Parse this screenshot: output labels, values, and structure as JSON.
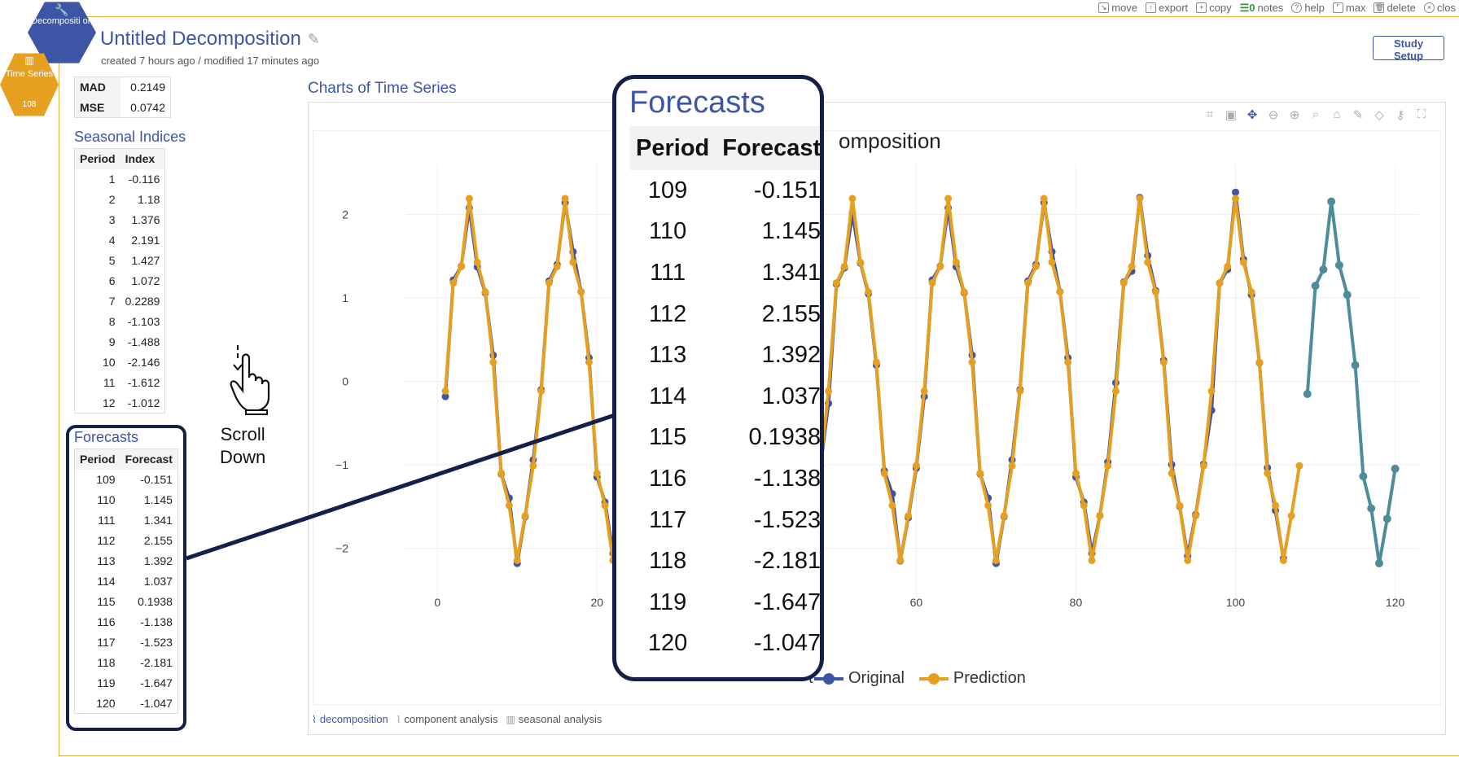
{
  "toolbar": {
    "items": [
      {
        "name": "move",
        "icon": "move-icon",
        "glyph": "↘",
        "label": "move"
      },
      {
        "name": "export",
        "icon": "export-icon",
        "glyph": "↑",
        "label": "export"
      },
      {
        "name": "copy",
        "icon": "copy-icon",
        "glyph": "+",
        "label": "copy"
      },
      {
        "name": "notes",
        "icon": "notes-icon",
        "glyph": "☰0",
        "label": "notes"
      },
      {
        "name": "help",
        "icon": "help-icon",
        "glyph": "?",
        "label": "help"
      },
      {
        "name": "max",
        "icon": "max-icon",
        "glyph": "⌜",
        "label": "max"
      },
      {
        "name": "delete",
        "icon": "trash-icon",
        "glyph": "🗑",
        "label": "delete"
      },
      {
        "name": "close",
        "icon": "close-icon",
        "glyph": "×",
        "label": "clos"
      }
    ]
  },
  "nav": {
    "decomposition_label": "Decompositi on",
    "time_series_label": "Time Series",
    "time_series_count": "108"
  },
  "header": {
    "title": "Untitled Decomposition",
    "subtitle": "created 7 hours ago / modified 17 minutes ago",
    "study_setup": "Study Setup"
  },
  "stats": [
    {
      "label": "MAD",
      "value": "0.2149"
    },
    {
      "label": "MSE",
      "value": "0.0742"
    }
  ],
  "seasonal": {
    "title": "Seasonal Indices",
    "headers": [
      "Period",
      "Index"
    ],
    "rows": [
      [
        "1",
        "-0.116"
      ],
      [
        "2",
        "1.18"
      ],
      [
        "3",
        "1.376"
      ],
      [
        "4",
        "2.191"
      ],
      [
        "5",
        "1.427"
      ],
      [
        "6",
        "1.072"
      ],
      [
        "7",
        "0.2289"
      ],
      [
        "8",
        "-1.103"
      ],
      [
        "9",
        "-1.488"
      ],
      [
        "10",
        "-2.146"
      ],
      [
        "11",
        "-1.612"
      ],
      [
        "12",
        "-1.012"
      ]
    ]
  },
  "forecasts": {
    "title": "Forecasts",
    "headers": [
      "Period",
      "Forecast"
    ],
    "rows": [
      [
        "109",
        "-0.151"
      ],
      [
        "110",
        "1.145"
      ],
      [
        "111",
        "1.341"
      ],
      [
        "112",
        "2.155"
      ],
      [
        "113",
        "1.392"
      ],
      [
        "114",
        "1.037"
      ],
      [
        "115",
        "0.1938"
      ],
      [
        "116",
        "-1.138"
      ],
      [
        "117",
        "-1.523"
      ],
      [
        "118",
        "-2.181"
      ],
      [
        "119",
        "-1.647"
      ],
      [
        "120",
        "-1.047"
      ]
    ]
  },
  "callout": {
    "scroll_text_1": "Scroll",
    "scroll_text_2": "Down"
  },
  "charts": {
    "section_title": "Charts of Time Series",
    "visible_title": "omposition",
    "tabs": [
      {
        "label": "decomposition",
        "active": true
      },
      {
        "label": "component analysis",
        "active": false
      },
      {
        "label": "seasonal analysis",
        "active": false
      }
    ],
    "legend": [
      {
        "name": "Original",
        "color": "#3e55a6"
      },
      {
        "name": "Prediction",
        "color": "#e6a020"
      }
    ],
    "legend_cut": "t"
  },
  "chart_data": {
    "type": "line",
    "xlim": [
      -4,
      123
    ],
    "ylim": [
      -2.6,
      2.6
    ],
    "x_ticks": [
      0,
      20,
      40,
      60,
      80,
      100,
      120
    ],
    "y_ticks": [
      -2,
      -1,
      0,
      1,
      2
    ],
    "colors": {
      "original": "#3e55a6",
      "prediction": "#e6a020",
      "forecast": "#4e8c99"
    },
    "seasonal": [
      -0.116,
      1.18,
      1.376,
      2.191,
      1.427,
      1.072,
      0.2289,
      -1.103,
      -1.488,
      -2.146,
      -1.612,
      -1.012
    ],
    "original_noise": [
      -0.33,
      0.05,
      -0.08,
      -0.25,
      0.18,
      -0.05,
      0.12,
      0.15,
      0.2,
      0.12,
      -0.05,
      0.1
    ],
    "series": [
      {
        "name": "Original",
        "x_start": 1,
        "x_end": 106,
        "color": "#3e55a6"
      },
      {
        "name": "Prediction",
        "x_start": 1,
        "x_end": 108,
        "color": "#e6a020"
      }
    ],
    "forecast_series": {
      "x": [
        109,
        110,
        111,
        112,
        113,
        114,
        115,
        116,
        117,
        118,
        119,
        120
      ],
      "values": [
        -0.151,
        1.145,
        1.341,
        2.155,
        1.392,
        1.037,
        0.1938,
        -1.138,
        -1.523,
        -2.181,
        -1.647,
        -1.047
      ]
    }
  }
}
